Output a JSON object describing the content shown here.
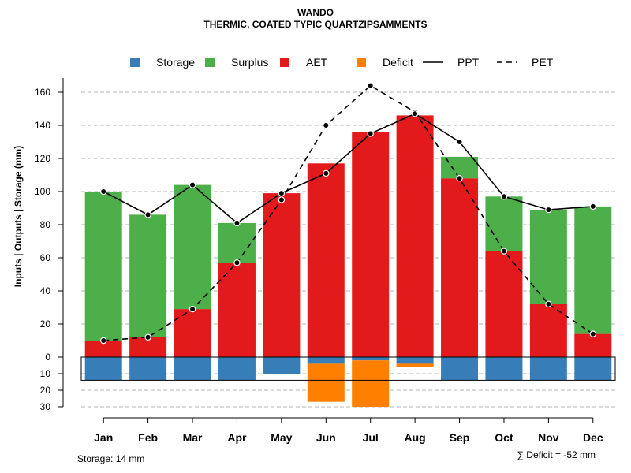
{
  "chart_data": {
    "type": "bar",
    "title": "WANDO",
    "subtitle": "THERMIC, COATED TYPIC QUARTZIPSAMMENTS",
    "ylabel": "Inputs | Outputs | Storage    (mm)",
    "categories": [
      "Jan",
      "Feb",
      "Mar",
      "Apr",
      "May",
      "Jun",
      "Jul",
      "Aug",
      "Sep",
      "Oct",
      "Nov",
      "Dec"
    ],
    "upper_ylim": [
      0,
      170
    ],
    "upper_ticks": [
      0,
      20,
      40,
      60,
      80,
      100,
      120,
      140,
      160
    ],
    "lower_ylim": [
      0,
      30
    ],
    "lower_ticks": [
      0,
      10,
      20,
      30
    ],
    "series": [
      {
        "name": "AET",
        "color": "#e31a1c",
        "values": [
          10,
          12,
          29,
          57,
          99,
          117,
          136,
          146,
          108,
          64,
          32,
          14
        ]
      },
      {
        "name": "Surplus",
        "color": "#4daf4a",
        "values": [
          90,
          74,
          75,
          24,
          0,
          0,
          0,
          0,
          13,
          33,
          57,
          77
        ]
      },
      {
        "name": "Storage",
        "color": "#377eb8",
        "values": [
          14,
          14,
          14,
          14,
          10,
          4,
          2,
          4,
          14,
          14,
          14,
          14
        ]
      },
      {
        "name": "Deficit",
        "color": "#ff7f00",
        "values": [
          0,
          0,
          0,
          0,
          0,
          23,
          28,
          2,
          0,
          0,
          0,
          0
        ]
      },
      {
        "name": "PPT",
        "color": "#000000",
        "line": "solid",
        "values": [
          100,
          86,
          104,
          81,
          99,
          111,
          135,
          147,
          130,
          97,
          89,
          91
        ]
      },
      {
        "name": "PET",
        "color": "#000000",
        "line": "dashed",
        "values": [
          10,
          12,
          29,
          57,
          95,
          140,
          164,
          148,
          108,
          64,
          32,
          14
        ]
      }
    ],
    "legend": {
      "position": "top",
      "entries": [
        {
          "label": "Storage",
          "kind": "box",
          "color": "#377eb8"
        },
        {
          "label": "Surplus",
          "kind": "box",
          "color": "#4daf4a"
        },
        {
          "label": "AET",
          "kind": "box",
          "color": "#e31a1c"
        },
        {
          "label": "Deficit",
          "kind": "box",
          "color": "#ff7f00"
        },
        {
          "label": "PPT",
          "kind": "solid"
        },
        {
          "label": "PET",
          "kind": "dashed"
        }
      ]
    },
    "storage_capacity": 14,
    "storage_note": "Storage: 14 mm",
    "deficit_summary": "∑ Deficit = -52 mm"
  }
}
